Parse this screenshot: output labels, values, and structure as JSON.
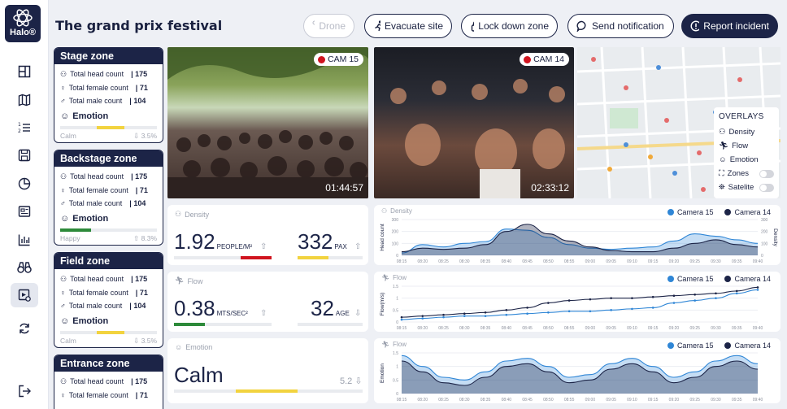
{
  "app": {
    "logo_text": "Halo®",
    "title": "The grand prix festival"
  },
  "header": {
    "drone": "Drone",
    "evacuate": "Evacuate site",
    "lockdown": "Lock down zone",
    "notify": "Send notification",
    "report": "Report incident"
  },
  "zones": [
    {
      "name": "Stage zone",
      "head_label": "Total head count",
      "head": "| 175",
      "female_label": "Total female count",
      "female": "| 71",
      "male_label": "Total male count",
      "male": "| 104",
      "emotion_label": "Emotion",
      "emotion": "Calm",
      "pct": "3.5%"
    },
    {
      "name": "Backstage zone",
      "head_label": "Total head count",
      "head": "| 175",
      "female_label": "Total female count",
      "female": "| 71",
      "male_label": "Total male count",
      "male": "| 104",
      "emotion_label": "Emotion",
      "emotion": "Happy",
      "pct": "8.3%"
    },
    {
      "name": "Field zone",
      "head_label": "Total head count",
      "head": "| 175",
      "female_label": "Total female count",
      "female": "| 71",
      "male_label": "Total male count",
      "male": "| 104",
      "emotion_label": "Emotion",
      "emotion": "Calm",
      "pct": "3.5%"
    },
    {
      "name": "Entrance zone",
      "head_label": "Total head count",
      "head": "| 175",
      "female_label": "Total female count",
      "female": "| 71"
    }
  ],
  "cameras": [
    {
      "tag": "CAM 15",
      "time": "01:44:57"
    },
    {
      "tag": "CAM 14",
      "time": "02:33:12"
    }
  ],
  "overlays": {
    "title": "OVERLAYS",
    "items": [
      "Density",
      "Flow",
      "Emotion",
      "Zones",
      "Satelite"
    ]
  },
  "metrics": {
    "density": {
      "label": "Density",
      "value": "1.92",
      "unit": "PEOPLE/M²",
      "value2": "332",
      "unit2": "PAX"
    },
    "flow": {
      "label": "Flow",
      "value": "0.38",
      "unit": "MTS/SEC²",
      "value2": "32",
      "unit2": "AGE"
    },
    "emotion": {
      "label": "Emotion",
      "value": "Calm",
      "value2": "5.2"
    }
  },
  "chart_data": [
    {
      "type": "area",
      "title": "Density",
      "ylabel": "Head count",
      "ylabel_right": "Density",
      "ylim": [
        0,
        300
      ],
      "yticks": [
        "300",
        "200",
        "100",
        "0"
      ],
      "x": [
        "08:15",
        "08:20",
        "08:25",
        "08:30",
        "08:35",
        "08:40",
        "08:45",
        "08:50",
        "08:55",
        "09:00",
        "09:05",
        "09:10",
        "09:15",
        "09:20",
        "09:25",
        "09:30",
        "09:35",
        "09:40"
      ],
      "series": [
        {
          "name": "Camera 15",
          "color": "#2f86d6",
          "values": [
            20,
            90,
            70,
            100,
            115,
            220,
            210,
            150,
            90,
            60,
            50,
            60,
            70,
            120,
            180,
            160,
            130,
            100
          ]
        },
        {
          "name": "Camera 14",
          "color": "#1c2447",
          "values": [
            30,
            60,
            50,
            60,
            90,
            200,
            260,
            180,
            120,
            70,
            40,
            30,
            30,
            60,
            100,
            130,
            90,
            70
          ]
        }
      ]
    },
    {
      "type": "line",
      "title": "Flow",
      "ylabel": "Flow(m/s)",
      "ylim": [
        0,
        1.5
      ],
      "yticks": [
        "1.5",
        "1",
        "0.5",
        "0"
      ],
      "x": [
        "08:15",
        "08:20",
        "08:25",
        "08:30",
        "08:35",
        "08:40",
        "08:45",
        "08:50",
        "08:55",
        "09:00",
        "09:05",
        "09:10",
        "09:15",
        "09:20",
        "09:25",
        "09:30",
        "09:35",
        "09:40"
      ],
      "series": [
        {
          "name": "Camera 15",
          "color": "#2f86d6",
          "values": [
            0.1,
            0.15,
            0.2,
            0.25,
            0.25,
            0.3,
            0.35,
            0.4,
            0.45,
            0.45,
            0.5,
            0.55,
            0.6,
            0.8,
            0.9,
            1.0,
            1.2,
            1.35
          ]
        },
        {
          "name": "Camera 14",
          "color": "#1c2447",
          "values": [
            0.2,
            0.25,
            0.3,
            0.35,
            0.4,
            0.5,
            0.6,
            0.8,
            0.9,
            0.95,
            1.0,
            1.0,
            1.05,
            1.1,
            1.15,
            1.2,
            1.3,
            1.45
          ]
        }
      ]
    },
    {
      "type": "area",
      "title": "Flow",
      "ylabel": "Emotion",
      "ylim": [
        0,
        1.5
      ],
      "yticks": [
        "1.5",
        "1",
        "0.5",
        "0"
      ],
      "x": [
        "08:15",
        "08:20",
        "08:25",
        "08:30",
        "08:35",
        "08:40",
        "08:45",
        "08:50",
        "08:55",
        "09:00",
        "09:05",
        "09:10",
        "09:15",
        "09:20",
        "09:25",
        "09:30",
        "09:35",
        "09:40"
      ],
      "series": [
        {
          "name": "Camera 15",
          "color": "#2f86d6",
          "values": [
            1.4,
            1.0,
            0.6,
            0.5,
            0.8,
            1.2,
            1.3,
            1.0,
            0.6,
            0.7,
            1.1,
            1.3,
            1.0,
            0.6,
            0.8,
            1.2,
            1.4,
            1.1
          ]
        },
        {
          "name": "Camera 14",
          "color": "#1c2447",
          "values": [
            1.2,
            0.8,
            0.4,
            0.3,
            0.6,
            1.0,
            1.1,
            0.8,
            0.4,
            0.5,
            0.9,
            1.1,
            0.8,
            0.4,
            0.6,
            1.0,
            1.2,
            0.9
          ]
        }
      ]
    }
  ]
}
